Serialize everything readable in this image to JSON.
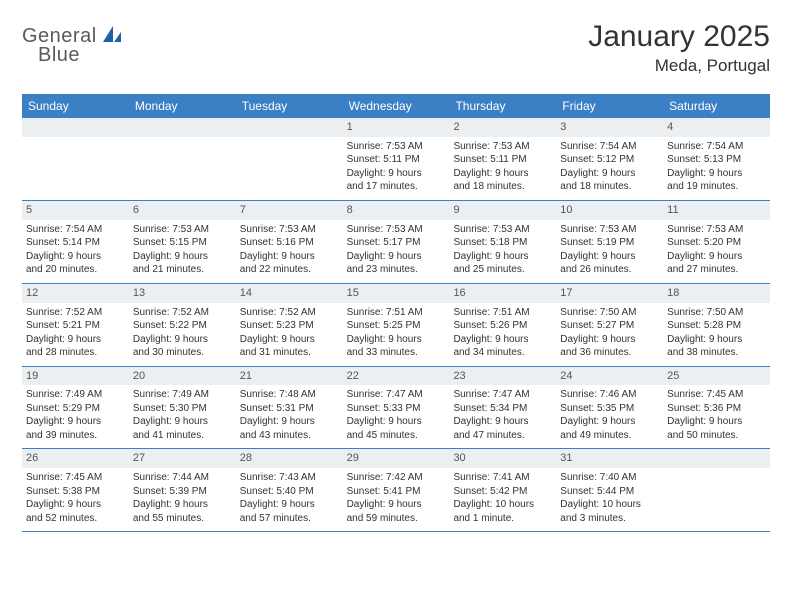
{
  "logo": {
    "text1": "General",
    "text2": "Blue"
  },
  "title": "January 2025",
  "location": "Meda, Portugal",
  "colors": {
    "header_bg": "#3b7fc4",
    "header_text": "#ffffff",
    "daynum_bg": "#eceff1",
    "border": "#3b7fc4",
    "text": "#333333",
    "logo_gray": "#5a5a5a",
    "logo_blue": "#1f5fa8"
  },
  "day_names": [
    "Sunday",
    "Monday",
    "Tuesday",
    "Wednesday",
    "Thursday",
    "Friday",
    "Saturday"
  ],
  "weeks": [
    [
      {
        "n": "",
        "blank": true
      },
      {
        "n": "",
        "blank": true
      },
      {
        "n": "",
        "blank": true
      },
      {
        "n": "1",
        "sr": "Sunrise: 7:53 AM",
        "ss": "Sunset: 5:11 PM",
        "d1": "Daylight: 9 hours",
        "d2": "and 17 minutes."
      },
      {
        "n": "2",
        "sr": "Sunrise: 7:53 AM",
        "ss": "Sunset: 5:11 PM",
        "d1": "Daylight: 9 hours",
        "d2": "and 18 minutes."
      },
      {
        "n": "3",
        "sr": "Sunrise: 7:54 AM",
        "ss": "Sunset: 5:12 PM",
        "d1": "Daylight: 9 hours",
        "d2": "and 18 minutes."
      },
      {
        "n": "4",
        "sr": "Sunrise: 7:54 AM",
        "ss": "Sunset: 5:13 PM",
        "d1": "Daylight: 9 hours",
        "d2": "and 19 minutes."
      }
    ],
    [
      {
        "n": "5",
        "sr": "Sunrise: 7:54 AM",
        "ss": "Sunset: 5:14 PM",
        "d1": "Daylight: 9 hours",
        "d2": "and 20 minutes."
      },
      {
        "n": "6",
        "sr": "Sunrise: 7:53 AM",
        "ss": "Sunset: 5:15 PM",
        "d1": "Daylight: 9 hours",
        "d2": "and 21 minutes."
      },
      {
        "n": "7",
        "sr": "Sunrise: 7:53 AM",
        "ss": "Sunset: 5:16 PM",
        "d1": "Daylight: 9 hours",
        "d2": "and 22 minutes."
      },
      {
        "n": "8",
        "sr": "Sunrise: 7:53 AM",
        "ss": "Sunset: 5:17 PM",
        "d1": "Daylight: 9 hours",
        "d2": "and 23 minutes."
      },
      {
        "n": "9",
        "sr": "Sunrise: 7:53 AM",
        "ss": "Sunset: 5:18 PM",
        "d1": "Daylight: 9 hours",
        "d2": "and 25 minutes."
      },
      {
        "n": "10",
        "sr": "Sunrise: 7:53 AM",
        "ss": "Sunset: 5:19 PM",
        "d1": "Daylight: 9 hours",
        "d2": "and 26 minutes."
      },
      {
        "n": "11",
        "sr": "Sunrise: 7:53 AM",
        "ss": "Sunset: 5:20 PM",
        "d1": "Daylight: 9 hours",
        "d2": "and 27 minutes."
      }
    ],
    [
      {
        "n": "12",
        "sr": "Sunrise: 7:52 AM",
        "ss": "Sunset: 5:21 PM",
        "d1": "Daylight: 9 hours",
        "d2": "and 28 minutes."
      },
      {
        "n": "13",
        "sr": "Sunrise: 7:52 AM",
        "ss": "Sunset: 5:22 PM",
        "d1": "Daylight: 9 hours",
        "d2": "and 30 minutes."
      },
      {
        "n": "14",
        "sr": "Sunrise: 7:52 AM",
        "ss": "Sunset: 5:23 PM",
        "d1": "Daylight: 9 hours",
        "d2": "and 31 minutes."
      },
      {
        "n": "15",
        "sr": "Sunrise: 7:51 AM",
        "ss": "Sunset: 5:25 PM",
        "d1": "Daylight: 9 hours",
        "d2": "and 33 minutes."
      },
      {
        "n": "16",
        "sr": "Sunrise: 7:51 AM",
        "ss": "Sunset: 5:26 PM",
        "d1": "Daylight: 9 hours",
        "d2": "and 34 minutes."
      },
      {
        "n": "17",
        "sr": "Sunrise: 7:50 AM",
        "ss": "Sunset: 5:27 PM",
        "d1": "Daylight: 9 hours",
        "d2": "and 36 minutes."
      },
      {
        "n": "18",
        "sr": "Sunrise: 7:50 AM",
        "ss": "Sunset: 5:28 PM",
        "d1": "Daylight: 9 hours",
        "d2": "and 38 minutes."
      }
    ],
    [
      {
        "n": "19",
        "sr": "Sunrise: 7:49 AM",
        "ss": "Sunset: 5:29 PM",
        "d1": "Daylight: 9 hours",
        "d2": "and 39 minutes."
      },
      {
        "n": "20",
        "sr": "Sunrise: 7:49 AM",
        "ss": "Sunset: 5:30 PM",
        "d1": "Daylight: 9 hours",
        "d2": "and 41 minutes."
      },
      {
        "n": "21",
        "sr": "Sunrise: 7:48 AM",
        "ss": "Sunset: 5:31 PM",
        "d1": "Daylight: 9 hours",
        "d2": "and 43 minutes."
      },
      {
        "n": "22",
        "sr": "Sunrise: 7:47 AM",
        "ss": "Sunset: 5:33 PM",
        "d1": "Daylight: 9 hours",
        "d2": "and 45 minutes."
      },
      {
        "n": "23",
        "sr": "Sunrise: 7:47 AM",
        "ss": "Sunset: 5:34 PM",
        "d1": "Daylight: 9 hours",
        "d2": "and 47 minutes."
      },
      {
        "n": "24",
        "sr": "Sunrise: 7:46 AM",
        "ss": "Sunset: 5:35 PM",
        "d1": "Daylight: 9 hours",
        "d2": "and 49 minutes."
      },
      {
        "n": "25",
        "sr": "Sunrise: 7:45 AM",
        "ss": "Sunset: 5:36 PM",
        "d1": "Daylight: 9 hours",
        "d2": "and 50 minutes."
      }
    ],
    [
      {
        "n": "26",
        "sr": "Sunrise: 7:45 AM",
        "ss": "Sunset: 5:38 PM",
        "d1": "Daylight: 9 hours",
        "d2": "and 52 minutes."
      },
      {
        "n": "27",
        "sr": "Sunrise: 7:44 AM",
        "ss": "Sunset: 5:39 PM",
        "d1": "Daylight: 9 hours",
        "d2": "and 55 minutes."
      },
      {
        "n": "28",
        "sr": "Sunrise: 7:43 AM",
        "ss": "Sunset: 5:40 PM",
        "d1": "Daylight: 9 hours",
        "d2": "and 57 minutes."
      },
      {
        "n": "29",
        "sr": "Sunrise: 7:42 AM",
        "ss": "Sunset: 5:41 PM",
        "d1": "Daylight: 9 hours",
        "d2": "and 59 minutes."
      },
      {
        "n": "30",
        "sr": "Sunrise: 7:41 AM",
        "ss": "Sunset: 5:42 PM",
        "d1": "Daylight: 10 hours",
        "d2": "and 1 minute."
      },
      {
        "n": "31",
        "sr": "Sunrise: 7:40 AM",
        "ss": "Sunset: 5:44 PM",
        "d1": "Daylight: 10 hours",
        "d2": "and 3 minutes."
      },
      {
        "n": "",
        "blank": true
      }
    ]
  ]
}
